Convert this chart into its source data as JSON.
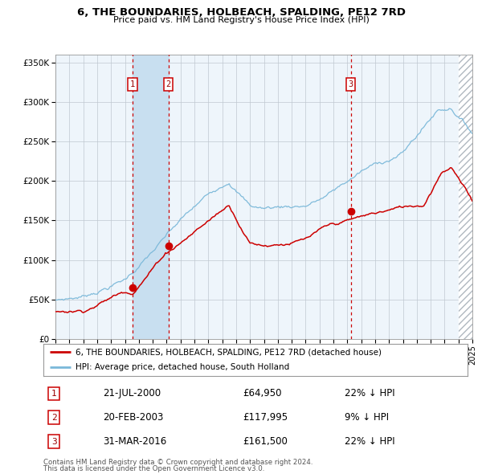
{
  "title": "6, THE BOUNDARIES, HOLBEACH, SPALDING, PE12 7RD",
  "subtitle": "Price paid vs. HM Land Registry's House Price Index (HPI)",
  "legend_line1": "6, THE BOUNDARIES, HOLBEACH, SPALDING, PE12 7RD (detached house)",
  "legend_line2": "HPI: Average price, detached house, South Holland",
  "footer1": "Contains HM Land Registry data © Crown copyright and database right 2024.",
  "footer2": "This data is licensed under the Open Government Licence v3.0.",
  "transactions": [
    {
      "label": "1",
      "date": "21-JUL-2000",
      "price": 64950,
      "price_str": "£64,950",
      "pct": "22% ↓ HPI",
      "year": 2000.55
    },
    {
      "label": "2",
      "date": "20-FEB-2003",
      "price": 117995,
      "price_str": "£117,995",
      "pct": "9% ↓ HPI",
      "year": 2003.13
    },
    {
      "label": "3",
      "date": "31-MAR-2016",
      "price": 161500,
      "price_str": "£161,500",
      "pct": "22% ↓ HPI",
      "year": 2016.25
    }
  ],
  "ylim": [
    0,
    360000
  ],
  "xlim": [
    1995,
    2025
  ],
  "yticks": [
    0,
    50000,
    100000,
    150000,
    200000,
    250000,
    300000,
    350000
  ],
  "ytick_labels": [
    "£0",
    "£50K",
    "£100K",
    "£150K",
    "£200K",
    "£250K",
    "£300K",
    "£350K"
  ],
  "hpi_color": "#7ab8d9",
  "price_color": "#cc0000",
  "dashed_line_color": "#cc0000",
  "shade_color": "#daeaf5",
  "chart_bg_color": "#eef5fb",
  "bg_color": "#ffffff",
  "grid_color": "#c0c8d0",
  "hatch_color": "#b0b8c0"
}
